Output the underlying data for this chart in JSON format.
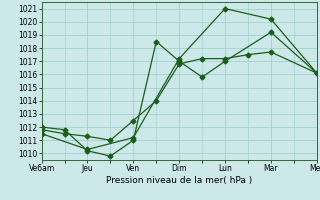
{
  "xlabel": "Pression niveau de la mer( hPa )",
  "background_color": "#cce8e8",
  "grid_color": "#99cccc",
  "line_color": "#1a5e1a",
  "xlim": [
    0,
    6
  ],
  "ylim": [
    1009.5,
    1021.5
  ],
  "yticks": [
    1010,
    1011,
    1012,
    1013,
    1014,
    1015,
    1016,
    1017,
    1018,
    1019,
    1020,
    1021
  ],
  "xtick_labels": [
    "Ve6am",
    "Jeu",
    "Ven",
    "Dim",
    "Lun",
    "Mar",
    "Mer"
  ],
  "xtick_positions": [
    0,
    1,
    2,
    3,
    4,
    5,
    6
  ],
  "series1_x": [
    0,
    0.5,
    1.0,
    1.5,
    2.0,
    2.5,
    3.0,
    3.5,
    4.0,
    4.5,
    5.0,
    6.0
  ],
  "series1_y": [
    1011.8,
    1011.5,
    1011.3,
    1011.0,
    1012.5,
    1014.0,
    1016.8,
    1017.2,
    1017.2,
    1017.5,
    1017.7,
    1016.1
  ],
  "series2_x": [
    0,
    0.5,
    1.0,
    1.5,
    2.0,
    2.5,
    3.0,
    3.5,
    4.0,
    5.0,
    6.0
  ],
  "series2_y": [
    1012.0,
    1011.8,
    1010.2,
    1009.8,
    1011.0,
    1018.5,
    1017.0,
    1015.8,
    1017.0,
    1019.2,
    1016.1
  ],
  "series3_x": [
    0,
    1.0,
    2.0,
    3.0,
    4.0,
    5.0,
    6.0
  ],
  "series3_y": [
    1011.5,
    1010.3,
    1011.2,
    1017.2,
    1021.0,
    1020.2,
    1016.1
  ]
}
